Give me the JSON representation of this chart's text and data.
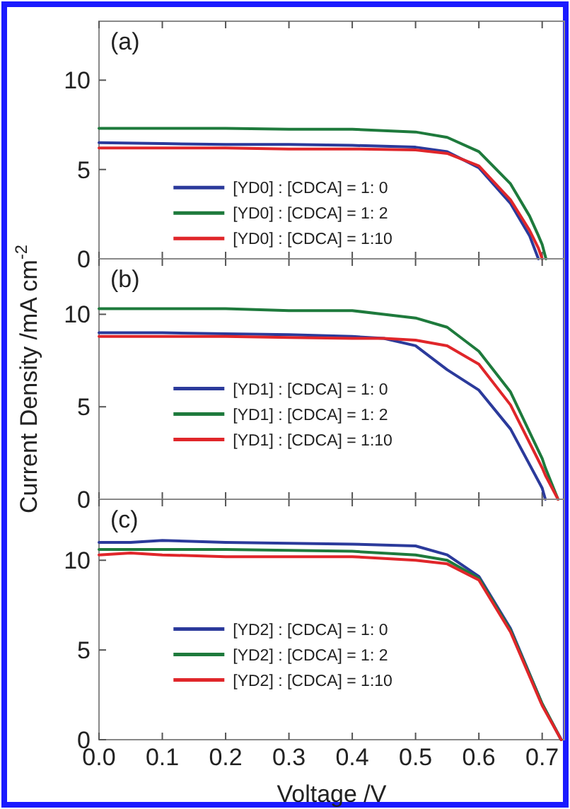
{
  "chart_data": [
    {
      "type": "line",
      "annotations": [
        "(a)"
      ],
      "x": [
        0,
        0.1,
        0.2,
        0.3,
        0.4,
        0.5,
        0.55,
        0.6,
        0.65,
        0.68,
        0.694,
        0.7,
        0.706
      ],
      "xlim": [
        0,
        0.735
      ],
      "xticks": [
        {
          "value": 0,
          "label": null
        },
        {
          "value": 0.1,
          "label": null
        },
        {
          "value": 0.2,
          "label": null
        },
        {
          "value": 0.3,
          "label": null
        },
        {
          "value": 0.4,
          "label": null
        },
        {
          "value": 0.5,
          "label": null
        },
        {
          "value": 0.6,
          "label": null
        },
        {
          "value": 0.7,
          "label": null
        }
      ],
      "ylim": [
        0,
        13.3
      ],
      "yticks": [
        0,
        5,
        10
      ],
      "tick_labels": "y",
      "legend": "bottom",
      "line_style": "solid",
      "series": [
        {
          "name": "[YD0] : [CDCA] = 1: 0",
          "color": "#2b3a9b",
          "values": [
            6.5,
            6.45,
            6.4,
            6.4,
            6.35,
            6.25,
            6.0,
            5.1,
            3.1,
            1.3,
            0,
            null,
            null
          ]
        },
        {
          "name": "[YD0] : [CDCA] = 1: 2",
          "color": "#1e7a3c",
          "values": [
            7.3,
            7.3,
            7.3,
            7.25,
            7.25,
            7.1,
            6.8,
            6.0,
            4.2,
            2.4,
            1.3,
            0.8,
            0
          ]
        },
        {
          "name": "[YD0] : [CDCA] = 1:10",
          "color": "#e0262a",
          "values": [
            6.2,
            6.2,
            6.2,
            6.15,
            6.15,
            6.1,
            5.9,
            5.2,
            3.3,
            1.6,
            0.6,
            0,
            null
          ]
        }
      ]
    },
    {
      "type": "line",
      "annotations": [
        "(b)"
      ],
      "ylabel": "Current Density /mA cm$^{-2}$",
      "x": [
        0,
        0.1,
        0.2,
        0.3,
        0.4,
        0.45,
        0.5,
        0.55,
        0.6,
        0.65,
        0.7,
        0.705,
        0.725
      ],
      "xlim": [
        0,
        0.735
      ],
      "xticks": [
        {
          "value": 0,
          "label": null
        },
        {
          "value": 0.1,
          "label": null
        },
        {
          "value": 0.2,
          "label": null
        },
        {
          "value": 0.3,
          "label": null
        },
        {
          "value": 0.4,
          "label": null
        },
        {
          "value": 0.5,
          "label": null
        },
        {
          "value": 0.6,
          "label": null
        },
        {
          "value": 0.7,
          "label": null
        }
      ],
      "ylim": [
        0,
        13
      ],
      "yticks": [
        0,
        5,
        10
      ],
      "tick_labels": "y",
      "legend": "center",
      "line_style": "solid",
      "series": [
        {
          "name": "[YD1] : [CDCA] = 1: 0",
          "color": "#2b3a9b",
          "values": [
            9.0,
            9.0,
            8.95,
            8.9,
            8.8,
            8.7,
            8.3,
            7.0,
            5.9,
            3.8,
            0.6,
            0,
            null
          ]
        },
        {
          "name": "[YD1] : [CDCA] = 1: 2",
          "color": "#1e7a3c",
          "values": [
            10.3,
            10.3,
            10.3,
            10.2,
            10.2,
            10.0,
            9.8,
            9.3,
            8.0,
            5.8,
            2.2,
            1.7,
            0
          ]
        },
        {
          "name": "[YD1] : [CDCA] = 1:10",
          "color": "#e0262a",
          "values": [
            8.8,
            8.8,
            8.8,
            8.75,
            8.7,
            8.7,
            8.6,
            8.3,
            7.3,
            5.1,
            1.7,
            1.3,
            0
          ]
        }
      ]
    },
    {
      "type": "line",
      "annotations": [
        "(c)"
      ],
      "xlabel": "Voltage /V",
      "x": [
        0,
        0.05,
        0.1,
        0.2,
        0.3,
        0.4,
        0.5,
        0.55,
        0.6,
        0.65,
        0.7,
        0.73
      ],
      "xlim": [
        0,
        0.735
      ],
      "xticks": [
        {
          "value": 0,
          "label": "0.0"
        },
        {
          "value": 0.1,
          "label": "0.1"
        },
        {
          "value": 0.2,
          "label": "0.2"
        },
        {
          "value": 0.3,
          "label": "0.3"
        },
        {
          "value": 0.4,
          "label": "0.4"
        },
        {
          "value": 0.5,
          "label": "0.5"
        },
        {
          "value": 0.6,
          "label": "0.6"
        },
        {
          "value": 0.7,
          "label": "0.7"
        }
      ],
      "ylim": [
        0,
        13.4
      ],
      "yticks": [
        0,
        5,
        10
      ],
      "legend": "center",
      "line_style": "solid",
      "series": [
        {
          "name": "[YD2] : [CDCA] = 1: 0",
          "color": "#2b3a9b",
          "values": [
            11.0,
            11.0,
            11.1,
            11.0,
            10.95,
            10.9,
            10.8,
            10.3,
            9.1,
            6.2,
            2.0,
            0
          ]
        },
        {
          "name": "[YD2] : [CDCA] = 1: 2",
          "color": "#1e7a3c",
          "values": [
            10.6,
            10.6,
            10.6,
            10.6,
            10.55,
            10.5,
            10.3,
            10.0,
            9.0,
            6.1,
            2.0,
            0
          ]
        },
        {
          "name": "[YD2] : [CDCA] = 1:10",
          "color": "#e0262a",
          "values": [
            10.3,
            10.4,
            10.3,
            10.2,
            10.2,
            10.2,
            10.0,
            9.8,
            8.9,
            6.0,
            1.9,
            0
          ]
        }
      ]
    }
  ]
}
